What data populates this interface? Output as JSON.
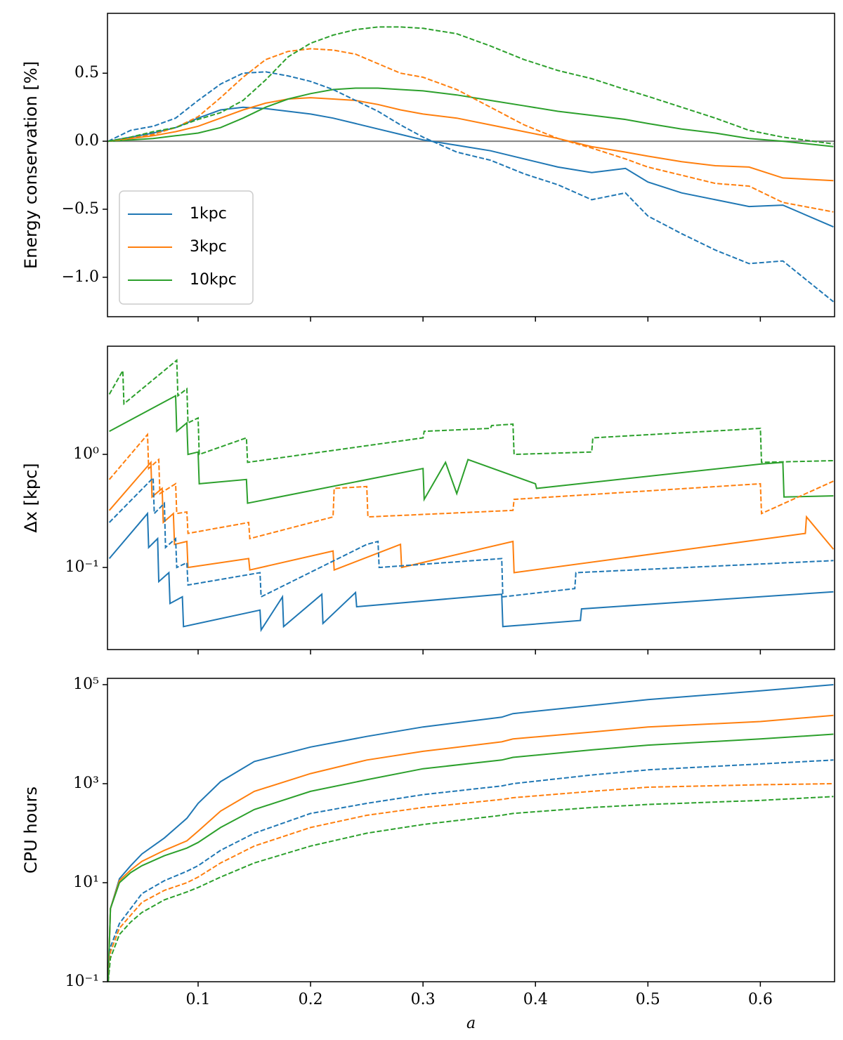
{
  "chart_data": [
    {
      "type": "line",
      "ylabel": "Energy conservation [%]",
      "legend": "lower left",
      "hline": 0,
      "show_xtick_labels": false,
      "xlim": [
        0.0194,
        0.666
      ],
      "xticks": [
        0.1,
        0.2,
        0.3,
        0.4,
        0.5,
        0.6
      ],
      "ylim": [
        -1.29,
        0.94
      ],
      "yticks": [
        {
          "value": -1.0,
          "label": "−1.0"
        },
        {
          "value": -0.5,
          "label": "−0.5"
        },
        {
          "value": 0.0,
          "label": "0.0"
        },
        0.5
      ],
      "x": [
        0.02,
        0.04,
        0.06,
        0.08,
        0.1,
        0.12,
        0.14,
        0.16,
        0.18,
        0.2,
        0.22,
        0.24,
        0.26,
        0.28,
        0.3,
        0.33,
        0.36,
        0.39,
        0.42,
        0.45,
        0.48,
        0.5,
        0.53,
        0.56,
        0.59,
        0.62,
        0.665
      ],
      "series": [
        {
          "name": "1kpc",
          "color": "#1f77b4",
          "linestyle": "solid",
          "values": [
            0,
            0.03,
            0.06,
            0.1,
            0.17,
            0.23,
            0.25,
            0.24,
            0.22,
            0.2,
            0.17,
            0.13,
            0.09,
            0.05,
            0.01,
            -0.03,
            -0.07,
            -0.13,
            -0.19,
            -0.23,
            -0.2,
            -0.3,
            -0.38,
            -0.43,
            -0.48,
            -0.47,
            -0.63
          ]
        },
        {
          "name": "3kpc",
          "color": "#ff7f0e",
          "linestyle": "solid",
          "values": [
            0,
            0.02,
            0.04,
            0.07,
            0.11,
            0.17,
            0.23,
            0.28,
            0.31,
            0.32,
            0.31,
            0.3,
            0.27,
            0.23,
            0.2,
            0.17,
            0.12,
            0.07,
            0.02,
            -0.04,
            -0.08,
            -0.11,
            -0.15,
            -0.18,
            -0.19,
            -0.27,
            -0.29
          ]
        },
        {
          "name": "10kpc",
          "color": "#2ca02c",
          "linestyle": "solid",
          "values": [
            0,
            0.01,
            0.02,
            0.04,
            0.06,
            0.1,
            0.17,
            0.25,
            0.31,
            0.35,
            0.38,
            0.39,
            0.39,
            0.38,
            0.37,
            0.34,
            0.3,
            0.26,
            0.22,
            0.19,
            0.16,
            0.13,
            0.09,
            0.06,
            0.02,
            0,
            -0.04
          ]
        },
        {
          "color": "#1f77b4",
          "linestyle": "dashed",
          "values": [
            0,
            0.08,
            0.11,
            0.17,
            0.3,
            0.42,
            0.5,
            0.51,
            0.48,
            0.44,
            0.38,
            0.3,
            0.22,
            0.12,
            0.03,
            -0.08,
            -0.14,
            -0.24,
            -0.32,
            -0.43,
            -0.38,
            -0.55,
            -0.68,
            -0.8,
            -0.9,
            -0.88,
            -1.18
          ]
        },
        {
          "color": "#ff7f0e",
          "linestyle": "dashed",
          "values": [
            0,
            0.02,
            0.05,
            0.1,
            0.18,
            0.32,
            0.47,
            0.6,
            0.66,
            0.68,
            0.67,
            0.64,
            0.57,
            0.5,
            0.47,
            0.38,
            0.25,
            0.12,
            0.02,
            -0.05,
            -0.13,
            -0.19,
            -0.25,
            -0.31,
            -0.33,
            -0.45,
            -0.52
          ]
        },
        {
          "color": "#2ca02c",
          "linestyle": "dashed",
          "values": [
            0,
            0.03,
            0.07,
            0.1,
            0.16,
            0.21,
            0.3,
            0.45,
            0.62,
            0.72,
            0.78,
            0.82,
            0.84,
            0.84,
            0.83,
            0.79,
            0.7,
            0.6,
            0.52,
            0.46,
            0.38,
            0.33,
            0.25,
            0.17,
            0.08,
            0.03,
            -0.02
          ]
        }
      ]
    },
    {
      "type": "line",
      "ylabel": "Δx [kpc]",
      "yscale": "log",
      "show_xtick_labels": false,
      "xlim": [
        0.0194,
        0.666
      ],
      "xticks": [
        0.1,
        0.2,
        0.3,
        0.4,
        0.5,
        0.6
      ],
      "ylim": [
        0.0188,
        9.05
      ],
      "yticks": [
        {
          "value": 0.1,
          "label": "10⁻¹"
        },
        {
          "value": 1,
          "label": "10⁰"
        }
      ],
      "series": [
        {
          "color": "#1f77b4",
          "linestyle": "solid",
          "x": [
            0.021,
            0.055,
            0.056,
            0.064,
            0.065,
            0.074,
            0.075,
            0.086,
            0.087,
            0.155,
            0.156,
            0.175,
            0.176,
            0.21,
            0.211,
            0.24,
            0.241,
            0.37,
            0.371,
            0.44,
            0.441,
            0.665
          ],
          "values": [
            0.12,
            0.3,
            0.15,
            0.18,
            0.075,
            0.09,
            0.048,
            0.055,
            0.03,
            0.042,
            0.028,
            0.055,
            0.03,
            0.058,
            0.032,
            0.06,
            0.045,
            0.058,
            0.03,
            0.034,
            0.043,
            0.061
          ]
        },
        {
          "color": "#ff7f0e",
          "linestyle": "solid",
          "x": [
            0.021,
            0.058,
            0.059,
            0.068,
            0.069,
            0.078,
            0.079,
            0.09,
            0.091,
            0.145,
            0.146,
            0.22,
            0.221,
            0.28,
            0.281,
            0.38,
            0.381,
            0.64,
            0.641,
            0.665
          ],
          "values": [
            0.32,
            0.85,
            0.42,
            0.5,
            0.25,
            0.3,
            0.16,
            0.17,
            0.1,
            0.12,
            0.095,
            0.14,
            0.095,
            0.16,
            0.1,
            0.17,
            0.09,
            0.2,
            0.28,
            0.145
          ]
        },
        {
          "color": "#2ca02c",
          "linestyle": "solid",
          "x": [
            0.021,
            0.08,
            0.081,
            0.09,
            0.091,
            0.1,
            0.101,
            0.143,
            0.144,
            0.3,
            0.301,
            0.32,
            0.33,
            0.34,
            0.4,
            0.401,
            0.6,
            0.62,
            0.621,
            0.665
          ],
          "values": [
            1.6,
            3.3,
            1.6,
            1.9,
            1.0,
            1.05,
            0.55,
            0.6,
            0.37,
            0.75,
            0.4,
            0.85,
            0.45,
            0.9,
            0.55,
            0.5,
            0.82,
            0.85,
            0.42,
            0.43
          ]
        },
        {
          "color": "#1f77b4",
          "linestyle": "dashed",
          "x": [
            0.021,
            0.06,
            0.061,
            0.07,
            0.071,
            0.08,
            0.081,
            0.09,
            0.091,
            0.155,
            0.156,
            0.25,
            0.26,
            0.261,
            0.37,
            0.371,
            0.435,
            0.436,
            0.665
          ],
          "values": [
            0.25,
            0.62,
            0.3,
            0.37,
            0.15,
            0.18,
            0.1,
            0.11,
            0.07,
            0.09,
            0.055,
            0.16,
            0.17,
            0.1,
            0.12,
            0.055,
            0.065,
            0.09,
            0.115
          ]
        },
        {
          "color": "#ff7f0e",
          "linestyle": "dashed",
          "x": [
            0.021,
            0.055,
            0.056,
            0.065,
            0.066,
            0.08,
            0.081,
            0.09,
            0.091,
            0.145,
            0.146,
            0.22,
            0.221,
            0.25,
            0.251,
            0.38,
            0.381,
            0.6,
            0.601,
            0.665
          ],
          "values": [
            0.6,
            1.5,
            0.75,
            0.9,
            0.45,
            0.55,
            0.3,
            0.31,
            0.2,
            0.25,
            0.18,
            0.28,
            0.5,
            0.52,
            0.28,
            0.32,
            0.4,
            0.55,
            0.3,
            0.58
          ]
        },
        {
          "color": "#2ca02c",
          "linestyle": "dashed",
          "x": [
            0.021,
            0.033,
            0.034,
            0.081,
            0.082,
            0.09,
            0.091,
            0.1,
            0.101,
            0.143,
            0.144,
            0.3,
            0.301,
            0.36,
            0.361,
            0.38,
            0.381,
            0.45,
            0.451,
            0.6,
            0.601,
            0.665
          ],
          "values": [
            3.4,
            5.5,
            2.8,
            6.8,
            3.3,
            3.8,
            1.9,
            2.1,
            1.0,
            1.4,
            0.85,
            1.4,
            1.6,
            1.7,
            1.8,
            1.85,
            1.0,
            1.05,
            1.4,
            1.7,
            0.85,
            0.88
          ]
        }
      ]
    },
    {
      "type": "line",
      "ylabel": "CPU hours",
      "xlabel": "a",
      "yscale": "log",
      "show_xtick_labels": true,
      "xlim": [
        0.0194,
        0.666
      ],
      "xticks": [
        0.1,
        0.2,
        0.3,
        0.4,
        0.5,
        0.6
      ],
      "ylim": [
        0.1,
        134000
      ],
      "yticks": [
        {
          "value": 0.1,
          "label": "10⁻¹"
        },
        {
          "value": 10,
          "label": "10¹"
        },
        {
          "value": 1000,
          "label": "10³"
        },
        {
          "value": 100000,
          "label": "10⁵"
        }
      ],
      "x": [
        0.02,
        0.022,
        0.03,
        0.04,
        0.05,
        0.07,
        0.09,
        0.1,
        0.12,
        0.15,
        0.2,
        0.25,
        0.3,
        0.37,
        0.38,
        0.45,
        0.5,
        0.6,
        0.665
      ],
      "series": [
        {
          "color": "#1f77b4",
          "linestyle": "solid",
          "values": [
            0.1,
            3,
            12,
            22,
            38,
            80,
            200,
            400,
            1100,
            2800,
            5500,
            9000,
            14000,
            22000,
            26000,
            38000,
            50000,
            75000,
            100000
          ]
        },
        {
          "color": "#ff7f0e",
          "linestyle": "solid",
          "values": [
            0.1,
            3,
            11,
            18,
            27,
            45,
            70,
            110,
            280,
            700,
            1600,
            3000,
            4500,
            7000,
            8000,
            11000,
            14000,
            18000,
            24000
          ]
        },
        {
          "color": "#2ca02c",
          "linestyle": "solid",
          "values": [
            0.1,
            3,
            10,
            16,
            22,
            35,
            50,
            65,
            130,
            300,
            700,
            1200,
            2000,
            3000,
            3400,
            4800,
            6000,
            8000,
            10000
          ]
        },
        {
          "color": "#1f77b4",
          "linestyle": "dashed",
          "values": [
            0.1,
            0.5,
            1.5,
            3,
            6,
            11,
            17,
            22,
            45,
            100,
            250,
            400,
            600,
            900,
            1000,
            1500,
            1900,
            2500,
            3000
          ]
        },
        {
          "color": "#ff7f0e",
          "linestyle": "dashed",
          "values": [
            0.1,
            0.4,
            1.2,
            2.2,
            4,
            7,
            10,
            13,
            25,
            55,
            130,
            230,
            330,
            480,
            520,
            700,
            850,
            950,
            1000
          ]
        },
        {
          "color": "#2ca02c",
          "linestyle": "dashed",
          "values": [
            0.1,
            0.3,
            0.9,
            1.6,
            2.5,
            4.5,
            6.5,
            8,
            13,
            25,
            55,
            100,
            150,
            230,
            250,
            330,
            380,
            460,
            550
          ]
        }
      ]
    }
  ]
}
